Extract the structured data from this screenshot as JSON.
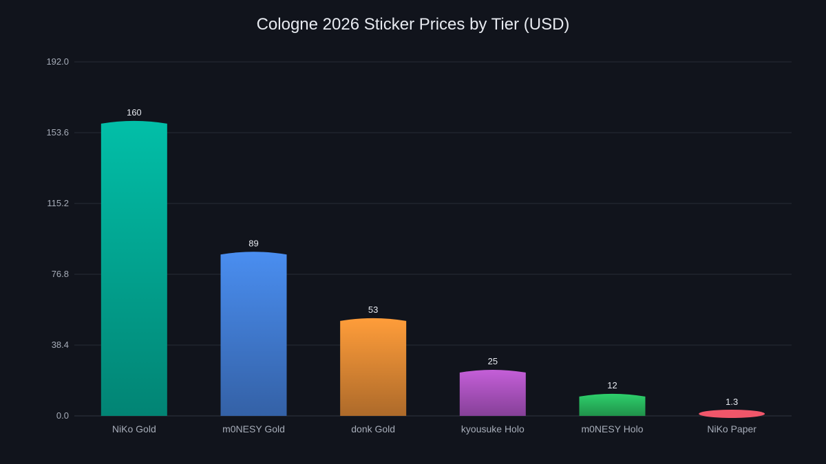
{
  "chart_data": {
    "type": "bar",
    "title": "Cologne 2026 Sticker Prices by Tier (USD)",
    "xlabel": "",
    "ylabel": "",
    "ylim": [
      0,
      192
    ],
    "yticks": [
      "0.0",
      "38.4",
      "76.8",
      "115.2",
      "153.6",
      "192.0"
    ],
    "categories": [
      "NiKo Gold",
      "m0NESY Gold",
      "donk Gold",
      "kyousuke Holo",
      "m0NESY Holo",
      "NiKo Paper"
    ],
    "values": [
      160,
      89,
      53,
      25,
      12,
      1.3
    ],
    "value_labels": [
      "160",
      "89",
      "53",
      "25",
      "12",
      "1.3"
    ],
    "colors": [
      [
        "#02bfa8",
        "#028474"
      ],
      [
        "#4a8ef0",
        "#3461a6"
      ],
      [
        "#ff9d3a",
        "#ad6a2a"
      ],
      [
        "#c45fd8",
        "#864098"
      ],
      [
        "#2ed06c",
        "#20924a"
      ],
      [
        "#f0566a",
        "#d8485a"
      ]
    ],
    "grid": true,
    "legend": "none"
  }
}
